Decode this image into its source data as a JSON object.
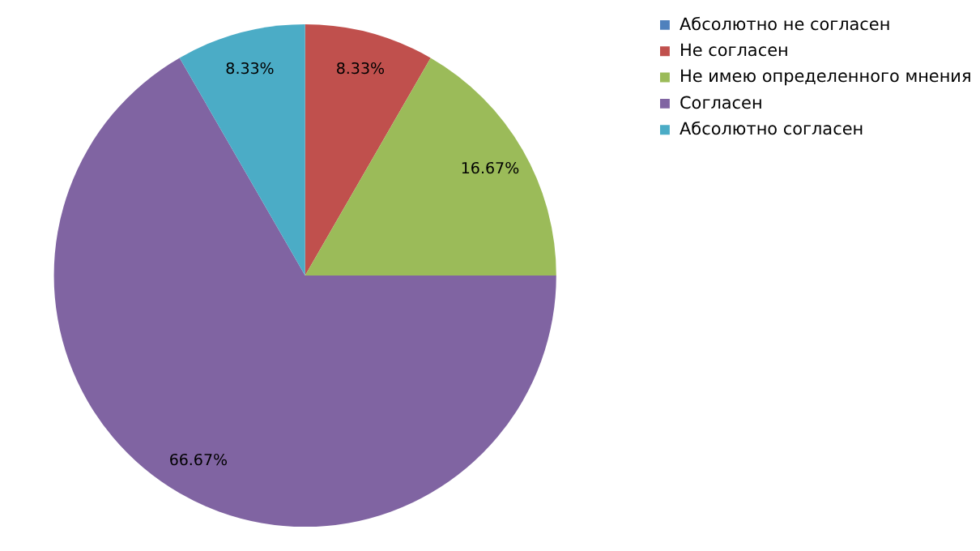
{
  "chart_data": {
    "type": "pie",
    "categories": [
      "Абсолютно не согласен",
      "Не согласен",
      "Не имею определенного мнения",
      "Согласен",
      "Абсолютно  согласен"
    ],
    "values": [
      0,
      8.33,
      16.67,
      66.67,
      8.33
    ],
    "colors": [
      "#4f81bd",
      "#c0504d",
      "#9bbb59",
      "#8064a2",
      "#4bacc6"
    ],
    "value_labels": [
      null,
      "8.33%",
      "16.67%",
      "66.67%",
      "8.33%"
    ],
    "legend": "right"
  }
}
